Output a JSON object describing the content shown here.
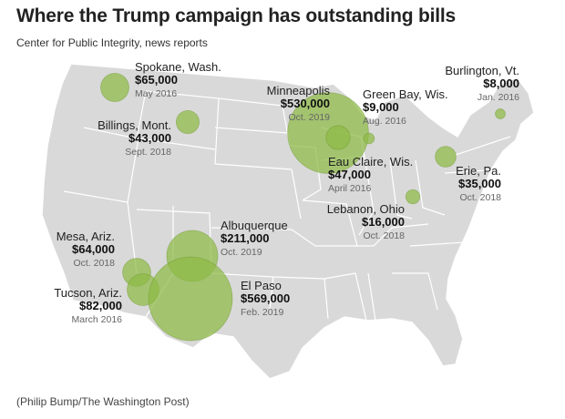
{
  "header": {
    "title": "Where the Trump campaign has outstanding bills",
    "source": "Center for Public Integrity, news reports"
  },
  "footer": {
    "credit": "(Philip Bump/The Washington Post)"
  },
  "colors": {
    "land": "#d9d9d9",
    "borders": "#ffffff",
    "bubble": "#8dba45",
    "bubble_outline": "#6f9a2e"
  },
  "map_data": {
    "region": "Contiguous United States",
    "bubbles": [
      {
        "place": "Spokane, Wash.",
        "amount": "$65,000",
        "date": "May 2016",
        "value": 65000
      },
      {
        "place": "Billings, Mont.",
        "amount": "$43,000",
        "date": "Sept. 2018",
        "value": 43000
      },
      {
        "place": "Minneapolis",
        "amount": "$530,000",
        "date": "Oct. 2019",
        "value": 530000
      },
      {
        "place": "Green Bay, Wis.",
        "amount": "$9,000",
        "date": "Aug. 2016",
        "value": 9000
      },
      {
        "place": "Burlington, Vt.",
        "amount": "$8,000",
        "date": "Jan. 2016",
        "value": 8000
      },
      {
        "place": "Eau Claire, Wis.",
        "amount": "$47,000",
        "date": "April 2016",
        "value": 47000
      },
      {
        "place": "Erie, Pa.",
        "amount": "$35,000",
        "date": "Oct. 2018",
        "value": 35000
      },
      {
        "place": "Lebanon, Ohio",
        "amount": "$16,000",
        "date": "Oct. 2018",
        "value": 16000
      },
      {
        "place": "Albuquerque",
        "amount": "$211,000",
        "date": "Oct. 2019",
        "value": 211000
      },
      {
        "place": "Mesa, Ariz.",
        "amount": "$64,000",
        "date": "Oct. 2018",
        "value": 64000
      },
      {
        "place": "Tucson, Ariz.",
        "amount": "$82,000",
        "date": "March 2016",
        "value": 82000
      },
      {
        "place": "El Paso",
        "amount": "$569,000",
        "date": "Feb. 2019",
        "value": 569000
      }
    ]
  }
}
